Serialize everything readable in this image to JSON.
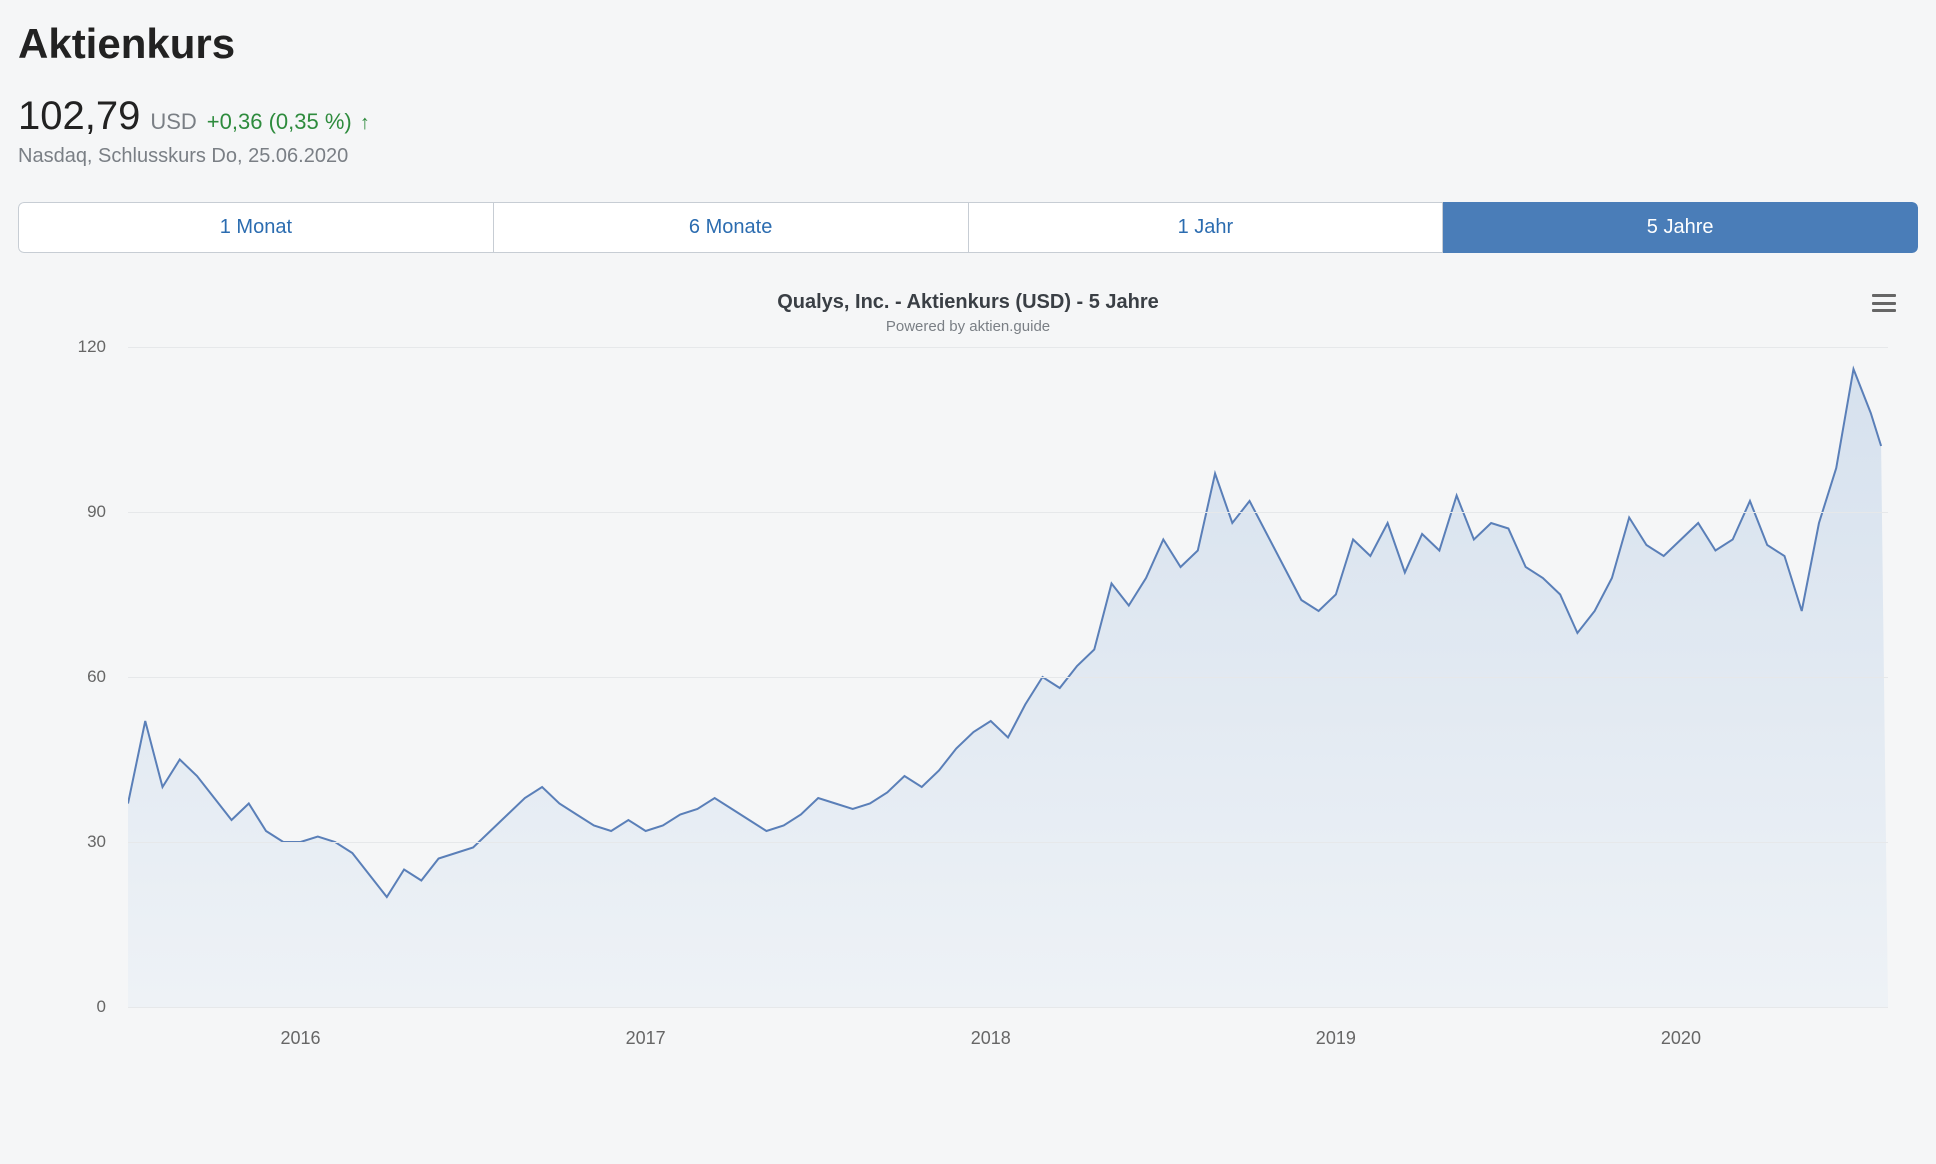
{
  "header": {
    "title": "Aktienkurs",
    "price": "102,79",
    "currency": "USD",
    "change_abs": "+0,36",
    "change_pct": "(0,35 %)",
    "change_direction": "up",
    "meta": "Nasdaq, Schlusskurs Do, 25.06.2020"
  },
  "tabs": [
    {
      "label": "1 Monat",
      "active": false
    },
    {
      "label": "6 Monate",
      "active": false
    },
    {
      "label": "1 Jahr",
      "active": false
    },
    {
      "label": "5 Jahre",
      "active": true
    }
  ],
  "chart": {
    "type": "area",
    "title": "Qualys, Inc. - Aktienkurs (USD) - 5 Jahre",
    "subtitle": "Powered by aktien.guide",
    "line_color": "#5a7fb8",
    "line_width": 2,
    "area_fill_top": "#d6e1ee",
    "area_fill_bottom": "#eef2f6",
    "grid_color": "#e6e8ea",
    "background_color": "#f5f6f7",
    "axis_label_color": "#666666",
    "axis_fontsize": 17,
    "y": {
      "min": 0,
      "max": 120,
      "ticks": [
        0,
        30,
        60,
        90,
        120
      ]
    },
    "x": {
      "min": 2015.5,
      "max": 2020.6,
      "ticks": [
        2016,
        2017,
        2018,
        2019,
        2020
      ],
      "tick_labels": [
        "2016",
        "2017",
        "2018",
        "2019",
        "2020"
      ]
    },
    "series": {
      "x": [
        2015.5,
        2015.55,
        2015.6,
        2015.65,
        2015.7,
        2015.75,
        2015.8,
        2015.85,
        2015.9,
        2015.95,
        2016.0,
        2016.05,
        2016.1,
        2016.15,
        2016.2,
        2016.25,
        2016.3,
        2016.35,
        2016.4,
        2016.45,
        2016.5,
        2016.55,
        2016.6,
        2016.65,
        2016.7,
        2016.75,
        2016.8,
        2016.85,
        2016.9,
        2016.95,
        2017.0,
        2017.05,
        2017.1,
        2017.15,
        2017.2,
        2017.25,
        2017.3,
        2017.35,
        2017.4,
        2017.45,
        2017.5,
        2017.55,
        2017.6,
        2017.65,
        2017.7,
        2017.75,
        2017.8,
        2017.85,
        2017.9,
        2017.95,
        2018.0,
        2018.05,
        2018.1,
        2018.15,
        2018.2,
        2018.25,
        2018.3,
        2018.35,
        2018.4,
        2018.45,
        2018.5,
        2018.55,
        2018.6,
        2018.65,
        2018.7,
        2018.75,
        2018.8,
        2018.85,
        2018.9,
        2018.95,
        2019.0,
        2019.05,
        2019.1,
        2019.15,
        2019.2,
        2019.25,
        2019.3,
        2019.35,
        2019.4,
        2019.45,
        2019.5,
        2019.55,
        2019.6,
        2019.65,
        2019.7,
        2019.75,
        2019.8,
        2019.85,
        2019.9,
        2019.95,
        2020.0,
        2020.05,
        2020.1,
        2020.15,
        2020.2,
        2020.25,
        2020.3,
        2020.35,
        2020.4,
        2020.45,
        2020.5,
        2020.55,
        2020.58
      ],
      "y": [
        37,
        52,
        40,
        45,
        42,
        38,
        34,
        37,
        32,
        30,
        30,
        31,
        30,
        28,
        24,
        20,
        25,
        23,
        27,
        28,
        29,
        32,
        35,
        38,
        40,
        37,
        35,
        33,
        32,
        34,
        32,
        33,
        35,
        36,
        38,
        36,
        34,
        32,
        33,
        35,
        38,
        37,
        36,
        37,
        39,
        42,
        40,
        43,
        47,
        50,
        52,
        49,
        55,
        60,
        58,
        62,
        65,
        77,
        73,
        78,
        85,
        80,
        83,
        97,
        88,
        92,
        86,
        80,
        74,
        72,
        75,
        85,
        82,
        88,
        79,
        86,
        83,
        93,
        85,
        88,
        87,
        80,
        78,
        75,
        68,
        72,
        78,
        89,
        84,
        82,
        85,
        88,
        83,
        85,
        92,
        84,
        82,
        72,
        88,
        98,
        116,
        108,
        102
      ]
    }
  }
}
